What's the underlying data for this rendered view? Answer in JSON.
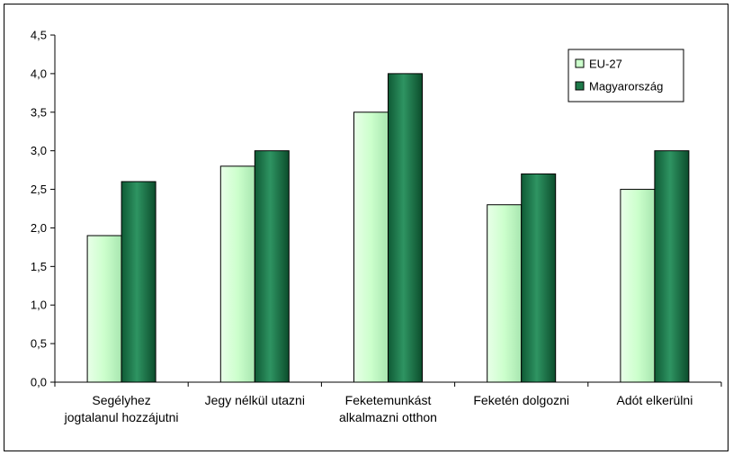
{
  "chart_data": {
    "type": "bar",
    "title": "",
    "xlabel": "",
    "ylabel": "",
    "ylim": [
      0,
      4.5
    ],
    "ytick_step": 0.5,
    "grid": false,
    "legend_position": "top-right",
    "categories": [
      [
        "Segélyhez",
        "jogtalanul hozzájutni"
      ],
      [
        "Jegy nélkül utazni"
      ],
      [
        "Feketemunkást",
        "alkalmazni otthon"
      ],
      [
        "Feketén dolgozni"
      ],
      [
        "Adót elkerülni"
      ]
    ],
    "series": [
      {
        "name": "EU-27",
        "color": "#ccffcc",
        "values": [
          1.9,
          2.8,
          3.5,
          2.3,
          2.5
        ]
      },
      {
        "name": "Magyarország",
        "color": "#1e7a4a",
        "values": [
          2.6,
          3.0,
          4.0,
          2.7,
          3.0
        ]
      }
    ]
  }
}
